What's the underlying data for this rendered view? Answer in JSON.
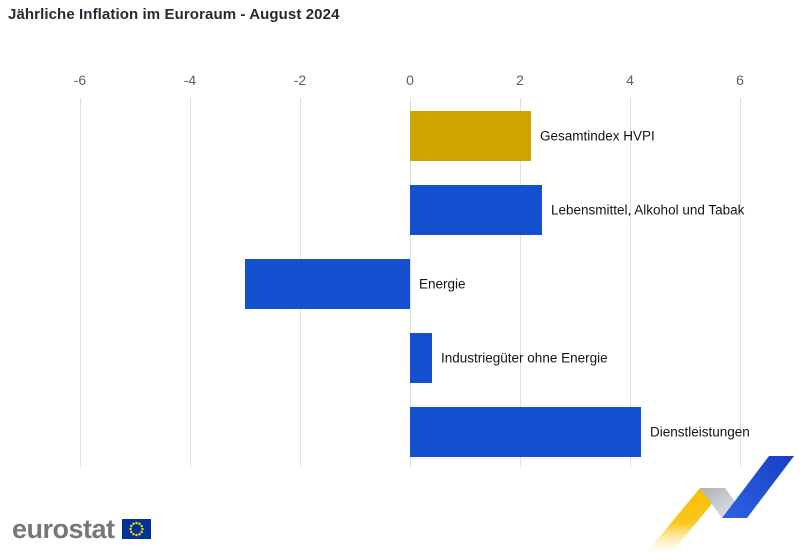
{
  "title": "Jährliche Inflation im Euroraum - August 2024",
  "chart_data": {
    "type": "bar",
    "orientation": "horizontal",
    "title": "Jährliche Inflation im Euroraum - August 2024",
    "categories": [
      "Gesamtindex HVPI",
      "Lebensmittel, Alkohol und Tabak",
      "Energie",
      "Industriegüter ohne Energie",
      "Dienstleistungen"
    ],
    "values": [
      2.2,
      2.4,
      -3.0,
      0.4,
      4.2
    ],
    "bar_colors": [
      "#CDA400",
      "#1451D0",
      "#1451D0",
      "#1451D0",
      "#1451D0"
    ],
    "x_ticks": [
      -6,
      -4,
      -2,
      0,
      2,
      4,
      6
    ],
    "xlim": [
      -7,
      7
    ],
    "grid": true,
    "legend_position": "none"
  },
  "logo": {
    "text": "eurostat"
  },
  "colors": {
    "accent_blue": "#1451D0",
    "accent_gold": "#CDA400",
    "grid_line": "#D8E1E8",
    "tick_label": "#59616B",
    "bar_label": "#101418",
    "title_text": "#242B34",
    "logo_gray": "#75787B",
    "flag_blue": "#003399",
    "star_yellow": "#FFCC00",
    "ribbon_yellow_top": "#F8BD04",
    "ribbon_yellow_mid": "#FBC71C",
    "ribbon_yellow_fade": "rgba(255,238,180,0.12)",
    "ribbon_gray_dark": "#AEB2B8",
    "ribbon_gray_light": "#E7E9EC",
    "ribbon_blue_light": "#2F62E6",
    "ribbon_blue_dark": "#173FC4"
  }
}
